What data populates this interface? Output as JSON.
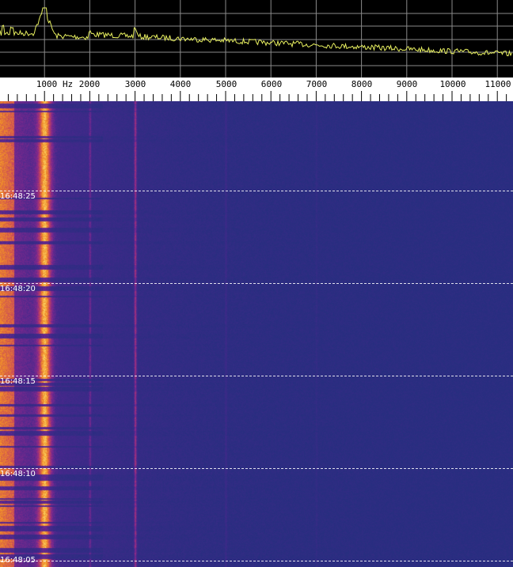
{
  "frequency_axis": {
    "unit_label": "Hz",
    "ticks": [
      "1000",
      "2000",
      "3000",
      "4000",
      "5000",
      "6000",
      "7000",
      "8000",
      "9000",
      "10000",
      "11000"
    ],
    "tick_values_hz": [
      1000,
      2000,
      3000,
      4000,
      5000,
      6000,
      7000,
      8000,
      9000,
      10000,
      11000
    ]
  },
  "waterfall": {
    "time_labels": [
      "16:48:25",
      "16:48:20",
      "16:48:15",
      "16:48:10",
      "16:48:05"
    ],
    "strong_tones_hz": [
      1000,
      2000,
      3000,
      5000,
      7000
    ]
  },
  "colors": {
    "spectrum_trace": "#e8f060",
    "grid": "#8a8a8a",
    "waterfall_low": "#2c3384",
    "waterfall_mid": "#7a2a8a",
    "waterfall_high": "#ffd040"
  }
}
